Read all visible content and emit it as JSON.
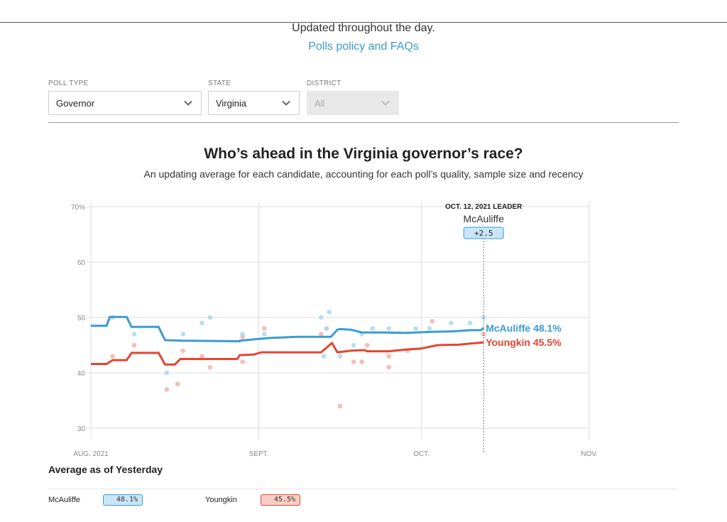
{
  "header": {
    "updated_text": "Updated throughout the day.",
    "policy_link": "Polls policy and FAQs"
  },
  "filters": [
    {
      "label": "POLL TYPE",
      "value": "Governor",
      "disabled": false
    },
    {
      "label": "STATE",
      "value": "Virginia",
      "disabled": false
    },
    {
      "label": "DISTRICT",
      "value": "All",
      "disabled": true
    }
  ],
  "colors": {
    "mcauliffe": "#3a9bd5",
    "youngkin": "#e5452f",
    "mcauliffe_dot": "#a9d8f2",
    "youngkin_dot": "#f5b3a7"
  },
  "chart_data": {
    "type": "line",
    "title": "Who’s ahead in the Virginia governor’s race?",
    "subtitle": "An updating average for each candidate, accounting for each poll’s quality, sample size and recency",
    "x_ticks": [
      "AUG. 2021",
      "SEPT.",
      "OCT.",
      "NOV."
    ],
    "x_range_days": [
      0,
      92
    ],
    "y_ticks": [
      "70%",
      "60",
      "50",
      "40",
      "30"
    ],
    "ylim": [
      28,
      71
    ],
    "grid": true,
    "leader_box": {
      "date_label": "OCT. 12, 2021 LEADER",
      "candidate": "McAuliffe",
      "margin": "+2.5",
      "day": 72.5
    },
    "series": [
      {
        "name": "McAuliffe",
        "end_label": "McAuliffe 48.1%",
        "color": "#3a9bd5",
        "points": [
          [
            0,
            48.5
          ],
          [
            2.9,
            48.5
          ],
          [
            3.5,
            50.1
          ],
          [
            6.6,
            50.1
          ],
          [
            7.5,
            48.3
          ],
          [
            12.5,
            48.3
          ],
          [
            13.7,
            45.9
          ],
          [
            17.5,
            45.8
          ],
          [
            27.5,
            45.7
          ],
          [
            27.5,
            45.8
          ],
          [
            29.5,
            46
          ],
          [
            33,
            46.3
          ],
          [
            38,
            46.5
          ],
          [
            42,
            46.5
          ],
          [
            43,
            46.5
          ],
          [
            44.3,
            46.5
          ],
          [
            45.5,
            47.8
          ],
          [
            46,
            47.9
          ],
          [
            48,
            47.8
          ],
          [
            50,
            47.3
          ],
          [
            54,
            47.3
          ],
          [
            58,
            47.2
          ],
          [
            63,
            47.4
          ],
          [
            67,
            47.5
          ],
          [
            70,
            47.7
          ],
          [
            72,
            47.7
          ],
          [
            72.5,
            48.1
          ]
        ]
      },
      {
        "name": "Youngkin",
        "end_label": "Youngkin 45.5%",
        "color": "#e5452f",
        "points": [
          [
            0,
            41.6
          ],
          [
            2.9,
            41.6
          ],
          [
            4,
            42.3
          ],
          [
            6.6,
            42.3
          ],
          [
            7.5,
            43.6
          ],
          [
            12.5,
            43.6
          ],
          [
            13.7,
            41.5
          ],
          [
            15.5,
            41.5
          ],
          [
            16.5,
            42.5
          ],
          [
            24,
            42.5
          ],
          [
            27,
            42.5
          ],
          [
            27.5,
            43.2
          ],
          [
            30,
            43.3
          ],
          [
            31.5,
            43.7
          ],
          [
            38,
            43.7
          ],
          [
            42.5,
            43.7
          ],
          [
            44.5,
            45.4
          ],
          [
            45.5,
            43.7
          ],
          [
            48,
            44
          ],
          [
            50.5,
            44.1
          ],
          [
            51,
            43.9
          ],
          [
            55,
            43.9
          ],
          [
            58,
            44.2
          ],
          [
            61,
            44.4
          ],
          [
            64,
            45
          ],
          [
            68,
            45.1
          ],
          [
            70,
            45.3
          ],
          [
            72.5,
            45.5
          ]
        ]
      }
    ],
    "polls": {
      "mcauliffe": [
        [
          4,
          50
        ],
        [
          8,
          47
        ],
        [
          14,
          40
        ],
        [
          17,
          47
        ],
        [
          20.5,
          49
        ],
        [
          22,
          50
        ],
        [
          28,
          47
        ],
        [
          32,
          47
        ],
        [
          42.5,
          50
        ],
        [
          43,
          43
        ],
        [
          43.5,
          48
        ],
        [
          44,
          51
        ],
        [
          46,
          43
        ],
        [
          48.5,
          45
        ],
        [
          50,
          47
        ],
        [
          52,
          48
        ],
        [
          55,
          48
        ],
        [
          60,
          48
        ],
        [
          62.5,
          48
        ],
        [
          66.5,
          49
        ],
        [
          70,
          49
        ],
        [
          72.5,
          50
        ]
      ],
      "youngkin": [
        [
          4,
          43
        ],
        [
          8,
          45
        ],
        [
          14,
          37
        ],
        [
          16,
          38
        ],
        [
          17,
          44
        ],
        [
          20.5,
          43
        ],
        [
          22,
          41
        ],
        [
          28,
          46.5
        ],
        [
          28,
          42
        ],
        [
          32,
          48
        ],
        [
          42.5,
          47
        ],
        [
          43.5,
          48
        ],
        [
          46,
          34
        ],
        [
          48.5,
          42
        ],
        [
          50,
          42
        ],
        [
          51,
          45
        ],
        [
          55,
          41
        ],
        [
          55,
          43
        ],
        [
          58.5,
          44
        ],
        [
          63,
          49.3
        ],
        [
          72.5,
          47
        ]
      ]
    }
  },
  "average": {
    "heading": "Average as of Yesterday",
    "entries": [
      {
        "name": "McAuliffe",
        "value": "48.1%"
      },
      {
        "name": "Youngkin",
        "value": "45.5%"
      }
    ]
  }
}
